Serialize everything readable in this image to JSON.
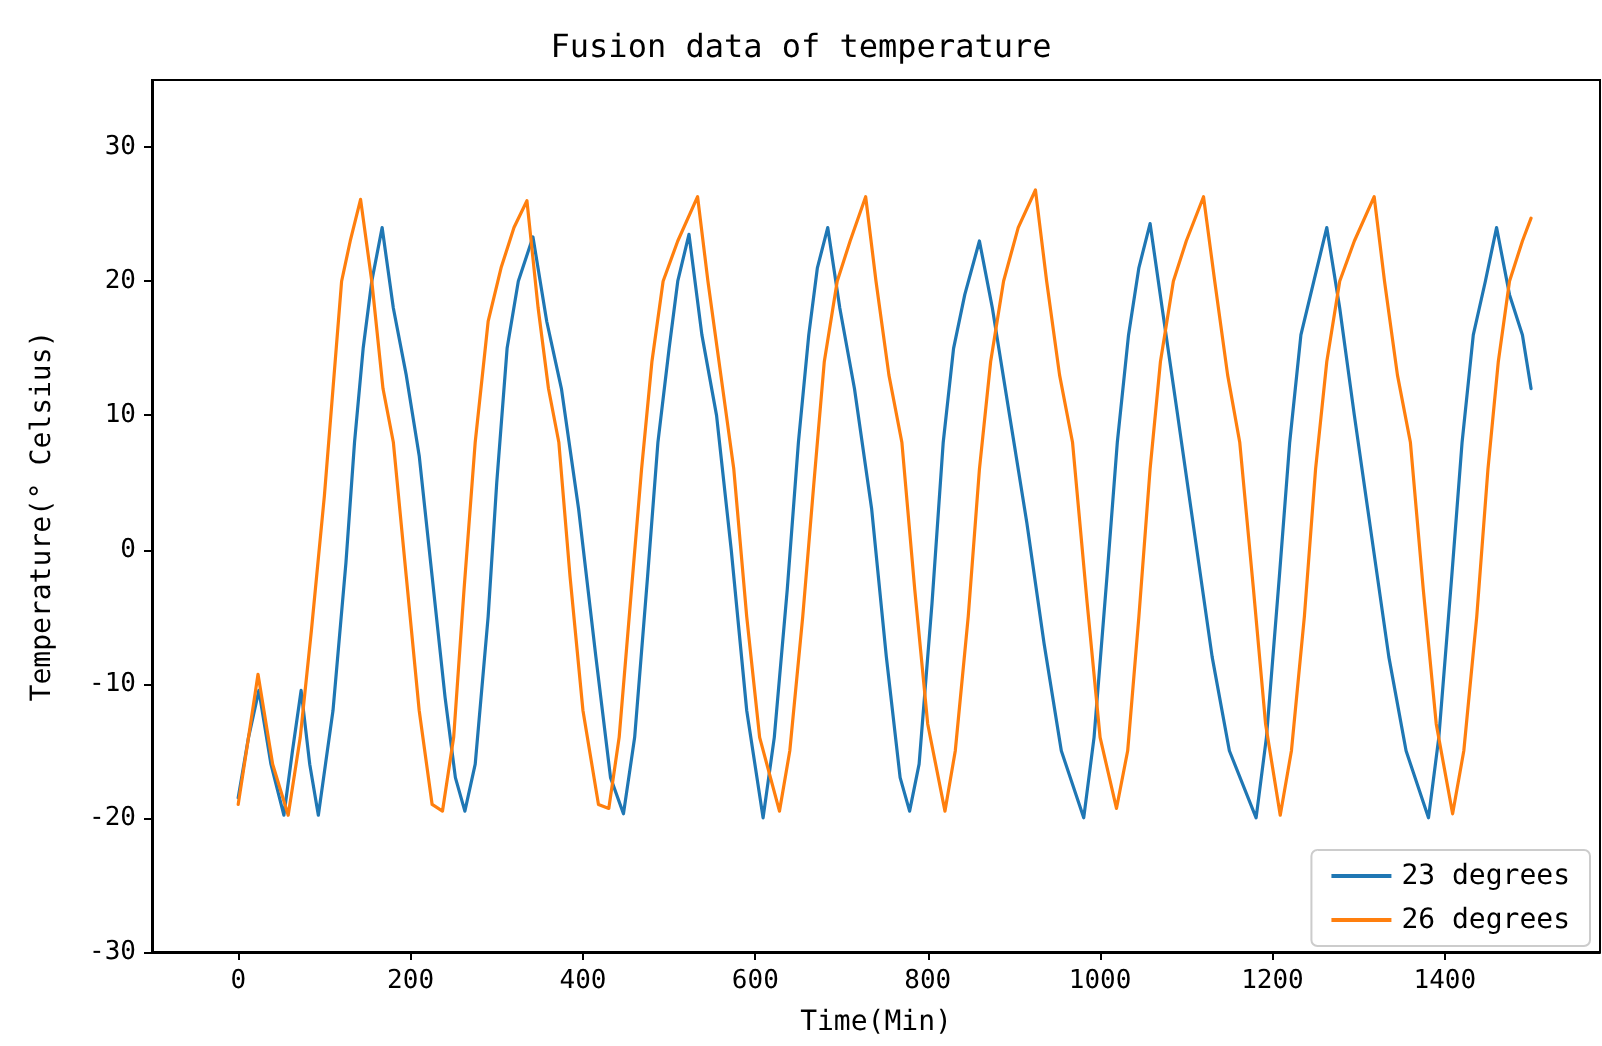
{
  "chart_data": {
    "type": "line",
    "title": "Fusion data of temperature",
    "xlabel": "Time(Min)",
    "ylabel": "Temperature(° Celsius)",
    "xlim": [
      -100,
      1580
    ],
    "xticks": [
      0,
      200,
      400,
      600,
      800,
      1000,
      1200,
      1400
    ],
    "ylim": [
      -30,
      35
    ],
    "yticks": [
      -30,
      -20,
      -10,
      0,
      10,
      20,
      30
    ],
    "grid": false,
    "legend": "bottom right",
    "marker": "none",
    "line_style": "solid",
    "series": [
      {
        "name": "23 degrees",
        "color": "#1f77b4",
        "x": [
          0,
          12,
          24,
          38,
          53,
          63,
          73,
          83,
          93,
          110,
          125,
          135,
          145,
          155,
          167,
          180,
          195,
          210,
          225,
          240,
          252,
          263,
          275,
          290,
          300,
          312,
          325,
          342,
          358,
          375,
          395,
          415,
          432,
          447,
          460,
          475,
          487,
          500,
          510,
          523,
          538,
          555,
          572,
          590,
          609,
          622,
          637,
          650,
          662,
          672,
          684,
          698,
          715,
          735,
          752,
          768,
          779,
          790,
          805,
          818,
          830,
          843,
          860,
          875,
          895,
          915,
          935,
          955,
          981,
          993,
          1008,
          1020,
          1033,
          1045,
          1058,
          1072,
          1090,
          1110,
          1130,
          1150,
          1181,
          1193,
          1208,
          1220,
          1233,
          1248,
          1263,
          1278,
          1295,
          1315,
          1335,
          1355,
          1381,
          1393,
          1408,
          1420,
          1433,
          1447,
          1460,
          1475,
          1490,
          1500
        ],
        "values": [
          -18.5,
          -14,
          -10.5,
          -16,
          -19.8,
          -15,
          -10.5,
          -16,
          -19.8,
          -12,
          -1,
          8,
          15,
          20,
          24,
          18,
          13,
          7,
          -2,
          -11,
          -17,
          -19.5,
          -16,
          -5,
          5,
          15,
          20,
          23.3,
          17,
          12,
          3,
          -8,
          -17,
          -19.7,
          -14,
          -2,
          8,
          15,
          20,
          23.5,
          16,
          10,
          0,
          -12,
          -20,
          -14,
          -3,
          8,
          16,
          21,
          24,
          18,
          12,
          3,
          -8,
          -17,
          -19.5,
          -16,
          -4,
          8,
          15,
          19,
          23,
          18,
          10,
          2,
          -7,
          -15,
          -20,
          -14,
          -2,
          8,
          16,
          21,
          24.3,
          18,
          10,
          1,
          -8,
          -15,
          -20,
          -14,
          -2,
          8,
          16,
          20,
          24,
          18,
          10,
          1,
          -8,
          -15,
          -20,
          -14,
          -2,
          8,
          16,
          20,
          24,
          19,
          16,
          12
        ]
      },
      {
        "name": "26 degrees",
        "color": "#ff7f0e",
        "x": [
          0,
          12,
          23,
          40,
          58,
          72,
          85,
          100,
          110,
          120,
          130,
          142,
          155,
          168,
          180,
          195,
          210,
          225,
          237,
          250,
          262,
          275,
          290,
          305,
          320,
          335,
          348,
          360,
          372,
          385,
          400,
          418,
          430,
          442,
          455,
          468,
          480,
          493,
          510,
          533,
          545,
          560,
          575,
          590,
          605,
          628,
          640,
          655,
          668,
          680,
          695,
          710,
          728,
          740,
          755,
          770,
          785,
          800,
          820,
          832,
          847,
          860,
          873,
          888,
          905,
          925,
          938,
          953,
          968,
          985,
          1000,
          1019,
          1032,
          1045,
          1058,
          1070,
          1085,
          1100,
          1120,
          1133,
          1148,
          1162,
          1178,
          1192,
          1209,
          1222,
          1237,
          1250,
          1263,
          1278,
          1295,
          1318,
          1330,
          1345,
          1360,
          1375,
          1390,
          1409,
          1422,
          1437,
          1450,
          1462,
          1475,
          1490,
          1500
        ],
        "values": [
          -19,
          -14,
          -9.3,
          -16,
          -19.8,
          -14,
          -6,
          4,
          12,
          20,
          23,
          26.1,
          20,
          12,
          8,
          -2,
          -12,
          -19,
          -19.5,
          -14,
          -3,
          8,
          17,
          21,
          24,
          26,
          18,
          12,
          8,
          -2,
          -12,
          -19,
          -19.3,
          -14,
          -4,
          6,
          14,
          20,
          23,
          26.3,
          20,
          13,
          6,
          -5,
          -14,
          -19.5,
          -15,
          -5,
          5,
          14,
          20,
          23,
          26.3,
          20,
          13,
          8,
          -3,
          -13,
          -19.5,
          -15,
          -5,
          6,
          14,
          20,
          24,
          26.8,
          20,
          13,
          8,
          -4,
          -14,
          -19.3,
          -15,
          -5,
          6,
          14,
          20,
          23,
          26.3,
          20,
          13,
          8,
          -3,
          -13,
          -19.8,
          -15,
          -5,
          6,
          14,
          20,
          23,
          26.3,
          20,
          13,
          8,
          -3,
          -13,
          -19.7,
          -15,
          -5,
          6,
          14,
          20,
          23,
          24.7
        ]
      }
    ]
  }
}
